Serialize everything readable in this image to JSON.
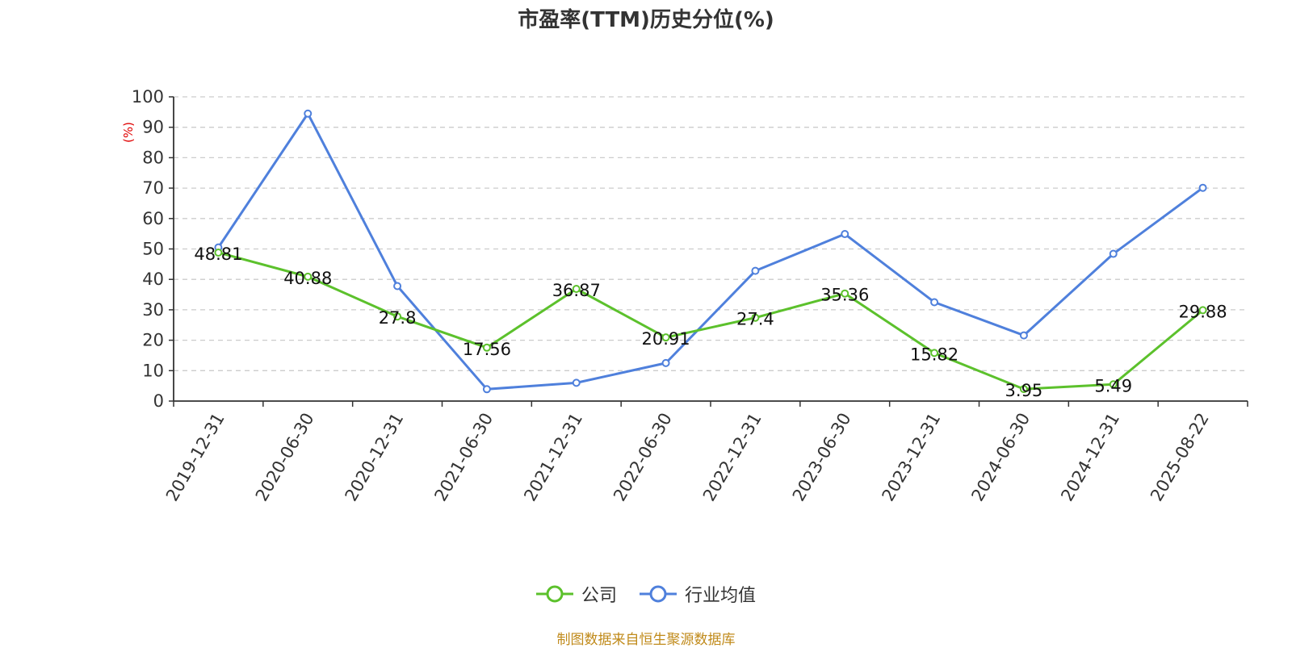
{
  "title": "市盈率(TTM)历史分位(%)",
  "source": "制图数据来自恒生聚源数据库",
  "colors": {
    "company": "#5cc12c",
    "industry": "#4f80dc",
    "ylabel": "#e00000",
    "source": "#c08a1a"
  },
  "chart_data": {
    "type": "line",
    "title": "市盈率(TTM)历史分位(%)",
    "ylabel": "(%)",
    "xlabel": "",
    "ylim": [
      0,
      100
    ],
    "yticks": [
      0,
      10,
      20,
      30,
      40,
      50,
      60,
      70,
      80,
      90,
      100
    ],
    "grid": true,
    "legend_position": "bottom",
    "categories": [
      "2019-12-31",
      "2020-06-30",
      "2020-12-31",
      "2021-06-30",
      "2021-12-31",
      "2022-06-30",
      "2022-12-31",
      "2023-06-30",
      "2023-12-31",
      "2024-06-30",
      "2024-12-31",
      "2025-08-22"
    ],
    "series": [
      {
        "name": "公司",
        "color": "#5cc12c",
        "show_labels": true,
        "values": [
          48.81,
          40.88,
          27.8,
          17.56,
          36.87,
          20.91,
          27.4,
          35.36,
          15.82,
          3.95,
          5.49,
          29.88
        ]
      },
      {
        "name": "行业均值",
        "color": "#4f80dc",
        "show_labels": false,
        "values": [
          50.5,
          94.5,
          37.8,
          3.9,
          6.0,
          12.5,
          42.8,
          54.9,
          32.5,
          21.6,
          48.4,
          70.1
        ]
      }
    ]
  }
}
